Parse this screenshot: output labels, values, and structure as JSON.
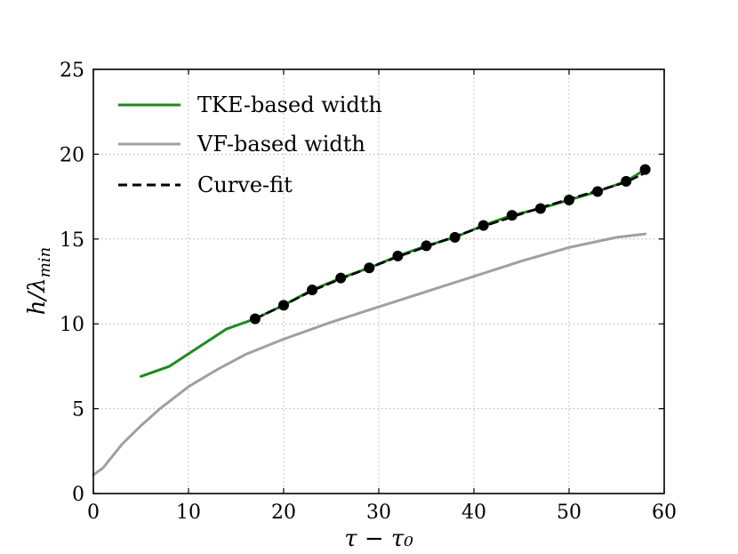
{
  "chart_data": {
    "type": "line",
    "title": "",
    "xlabel": "τ − τ₀",
    "ylabel": "h/λ",
    "ylabel_sub": "min",
    "xlim": [
      0,
      60
    ],
    "ylim": [
      0,
      25
    ],
    "xticks": [
      0,
      10,
      20,
      30,
      40,
      50,
      60
    ],
    "yticks": [
      0,
      5,
      10,
      15,
      20,
      25
    ],
    "grid": true,
    "legend_position": "top-left",
    "series": [
      {
        "name": "TKE-based width",
        "color": "#1a8c1a",
        "style": "solid",
        "x": [
          5,
          8,
          11,
          14,
          17,
          20,
          23,
          26,
          29,
          32,
          35,
          38,
          41,
          44,
          47,
          50,
          53,
          56,
          58
        ],
        "y": [
          6.9,
          7.5,
          8.6,
          9.7,
          10.3,
          11.1,
          12.0,
          12.7,
          13.3,
          14.0,
          14.6,
          15.1,
          15.8,
          16.4,
          16.8,
          17.3,
          17.8,
          18.4,
          19.1
        ]
      },
      {
        "name": "VF-based width",
        "color": "#a0a0a0",
        "style": "solid",
        "x": [
          0,
          1,
          3,
          5,
          7,
          10,
          13,
          16,
          20,
          25,
          30,
          35,
          40,
          45,
          50,
          55,
          58
        ],
        "y": [
          1.1,
          1.5,
          2.9,
          4.0,
          5.0,
          6.3,
          7.3,
          8.2,
          9.1,
          10.1,
          11.0,
          11.9,
          12.8,
          13.7,
          14.5,
          15.1,
          15.3
        ]
      },
      {
        "name": "Curve-fit",
        "color": "#000000",
        "style": "dashed",
        "x": [
          17,
          20,
          23,
          26,
          29,
          32,
          35,
          38,
          41,
          44,
          47,
          50,
          53,
          56,
          58
        ],
        "y": [
          10.3,
          11.1,
          11.95,
          12.65,
          13.3,
          13.95,
          14.55,
          15.15,
          15.75,
          16.3,
          16.85,
          17.35,
          17.85,
          18.35,
          18.9
        ]
      }
    ],
    "markers": {
      "name": "data-points",
      "color": "#000000",
      "x": [
        17,
        20,
        23,
        26,
        29,
        32,
        35,
        38,
        41,
        44,
        47,
        50,
        53,
        56,
        58
      ],
      "y": [
        10.3,
        11.1,
        12.0,
        12.7,
        13.3,
        14.0,
        14.6,
        15.1,
        15.8,
        16.4,
        16.8,
        17.3,
        17.8,
        18.4,
        19.1
      ]
    }
  }
}
